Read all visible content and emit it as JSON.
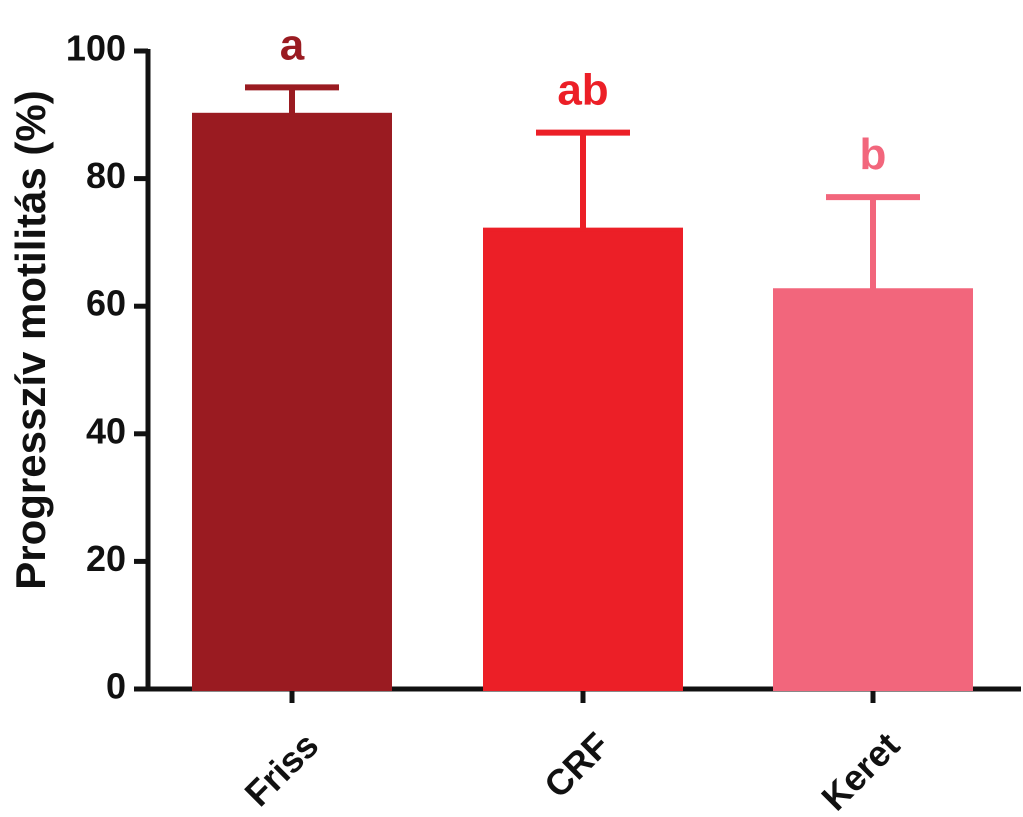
{
  "chart_data": {
    "type": "bar",
    "title": "",
    "xlabel": "",
    "ylabel": "Progresszív motilitás (%)",
    "ylim": [
      0,
      100
    ],
    "yticks": [
      0,
      20,
      40,
      60,
      80,
      100
    ],
    "grid": false,
    "categories": [
      "Friss",
      "CRF",
      "Keret"
    ],
    "values": [
      90,
      72,
      62.5
    ],
    "errors": [
      4.3,
      15.2,
      14.6
    ],
    "significance_letters": [
      "a",
      "ab",
      "b"
    ],
    "colors": [
      "#9a1b21",
      "#ec1f27",
      "#f2667c"
    ]
  }
}
